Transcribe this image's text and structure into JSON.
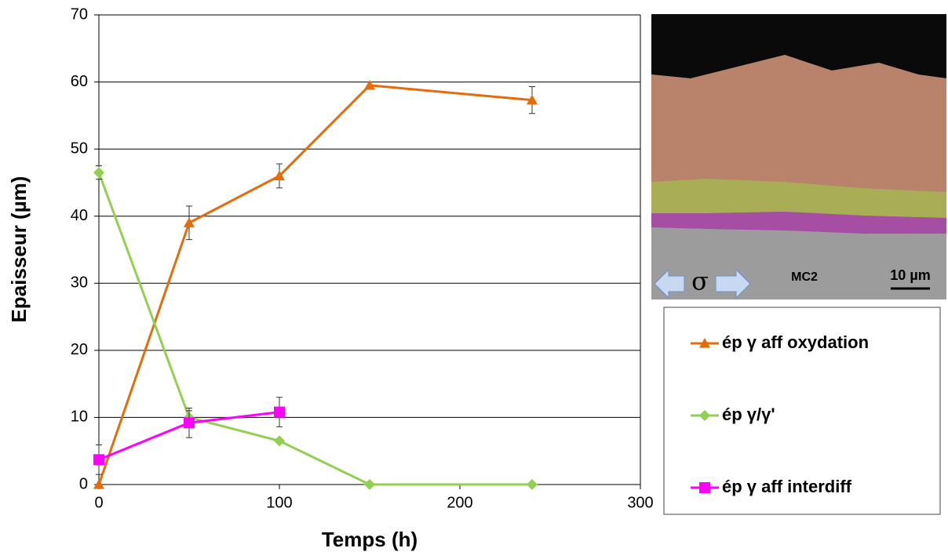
{
  "chart_data": {
    "type": "line",
    "x_label": "Temps (h)",
    "y_label": "Epaisseur (µm)",
    "xlim": [
      0,
      300
    ],
    "xticks": [
      0,
      100,
      200,
      300
    ],
    "ylim": [
      0,
      70
    ],
    "yticks": [
      0,
      10,
      20,
      30,
      40,
      50,
      60,
      70
    ],
    "grid": true,
    "series": [
      {
        "name": "ép γ  aff oxydation",
        "color": "#e46c0a",
        "marker": "triangle",
        "x": [
          0,
          50,
          100,
          150,
          240
        ],
        "values": [
          0,
          39,
          46,
          59.5,
          57.3
        ],
        "errors": [
          0,
          2.5,
          1.8,
          0.5,
          2
        ]
      },
      {
        "name": "ép γ/γ'",
        "color": "#92d050",
        "marker": "diamond",
        "x": [
          0,
          50,
          100,
          150,
          240
        ],
        "values": [
          46.5,
          10,
          6.5,
          0,
          0
        ],
        "errors": [
          1,
          1,
          0,
          0,
          0
        ]
      },
      {
        "name": "ép γ  aff interdiff",
        "color": "#ff00ff",
        "marker": "square",
        "x": [
          0,
          50,
          100
        ],
        "values": [
          3.7,
          9.2,
          10.8
        ],
        "errors": [
          2.2,
          2.2,
          2.2
        ]
      }
    ],
    "image_labels": [
      "σ",
      "MC2",
      "10 µm"
    ]
  }
}
